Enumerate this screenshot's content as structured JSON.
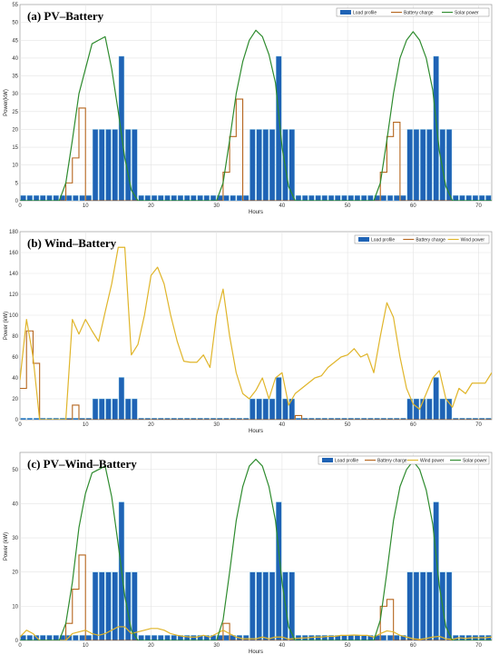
{
  "chart_data": [
    {
      "type": "bar",
      "title": "(a) PV–Battery",
      "xlabel": "Hours",
      "ylabel": "Power(kW)",
      "xlim": [
        0,
        72
      ],
      "ylim": [
        0,
        55
      ],
      "xticks": [
        0,
        10,
        20,
        30,
        40,
        50,
        60,
        70
      ],
      "yticks": [
        0,
        5,
        10,
        15,
        20,
        25,
        30,
        35,
        40,
        45,
        50,
        55
      ],
      "grid": true,
      "legend_position": "top-right",
      "colors": {
        "load": "#1f63b5",
        "battery": "#b5651d",
        "solar": "#2e8b2e"
      },
      "series": [
        {
          "name": "Load profile",
          "kind": "bar",
          "values": [
            1.5,
            1.5,
            1.5,
            1.5,
            1.5,
            1.5,
            1.5,
            1.5,
            1.5,
            1.5,
            1.5,
            20,
            20,
            20,
            20,
            40.5,
            20,
            20,
            1.5,
            1.5,
            1.5,
            1.5,
            1.5,
            1.5,
            1.5,
            1.5,
            1.5,
            1.5,
            1.5,
            1.5,
            1.5,
            1.5,
            1.5,
            1.5,
            1.5,
            20,
            20,
            20,
            20,
            40.5,
            20,
            20,
            1.5,
            1.5,
            1.5,
            1.5,
            1.5,
            1.5,
            1.5,
            1.5,
            1.5,
            1.5,
            1.5,
            1.5,
            1.5,
            1.5,
            1.5,
            1.5,
            1.5,
            20,
            20,
            20,
            20,
            40.5,
            20,
            20,
            1.5,
            1.5,
            1.5,
            1.5,
            1.5,
            1.5
          ]
        },
        {
          "name": "Battery charge",
          "kind": "step",
          "values": [
            0,
            0,
            0,
            0,
            0,
            0,
            0,
            5,
            12,
            26,
            0,
            0,
            0,
            0,
            0,
            0,
            0,
            0,
            0,
            0,
            0,
            0,
            0,
            0,
            0,
            0,
            0,
            0,
            0,
            0,
            0,
            8,
            18,
            28.5,
            0,
            0,
            0,
            0,
            0,
            0,
            0,
            0,
            0,
            0,
            0,
            0,
            0,
            0,
            0,
            0,
            0,
            0,
            0,
            0,
            0,
            8,
            18,
            22,
            0,
            0,
            0,
            0,
            0,
            0,
            0,
            0,
            0,
            0,
            0,
            0,
            0,
            0
          ]
        },
        {
          "name": "Solar power",
          "kind": "line",
          "x": [
            0,
            6,
            7,
            8,
            9,
            10,
            11,
            12,
            13,
            14,
            15,
            16,
            17,
            18,
            30,
            31,
            32,
            33,
            34,
            35,
            36,
            37,
            38,
            39,
            40,
            41,
            42,
            54,
            55,
            56,
            57,
            58,
            59,
            60,
            61,
            62,
            63,
            64,
            65,
            66,
            72
          ],
          "values": [
            0,
            0,
            5,
            17,
            30,
            37,
            44,
            45,
            46,
            37,
            25,
            12,
            3,
            0,
            0,
            5,
            17,
            30,
            39,
            45,
            47.8,
            46,
            41,
            33,
            15,
            4,
            0,
            0,
            5,
            17,
            30,
            40,
            45,
            47.4,
            45,
            40,
            31,
            14,
            4,
            0,
            0
          ]
        }
      ]
    },
    {
      "type": "bar",
      "title": "(b) Wind–Battery",
      "xlabel": "Hours",
      "ylabel": "Power (kW)",
      "xlim": [
        0,
        72
      ],
      "ylim": [
        0,
        180
      ],
      "xticks": [
        0,
        10,
        20,
        30,
        40,
        50,
        60,
        70
      ],
      "yticks": [
        0,
        20,
        40,
        60,
        80,
        100,
        120,
        140,
        160,
        180
      ],
      "grid": true,
      "legend_position": "top-right",
      "colors": {
        "load": "#1f63b5",
        "battery": "#b5651d",
        "wind": "#e0b52a"
      },
      "series": [
        {
          "name": "Load profile",
          "kind": "bar",
          "values": [
            1.5,
            1.5,
            1.5,
            1.5,
            1.5,
            1.5,
            1.5,
            1.5,
            1.5,
            1.5,
            1.5,
            20,
            20,
            20,
            20,
            40.5,
            20,
            20,
            1.5,
            1.5,
            1.5,
            1.5,
            1.5,
            1.5,
            1.5,
            1.5,
            1.5,
            1.5,
            1.5,
            1.5,
            1.5,
            1.5,
            1.5,
            1.5,
            1.5,
            20,
            20,
            20,
            20,
            40.5,
            20,
            20,
            1.5,
            1.5,
            1.5,
            1.5,
            1.5,
            1.5,
            1.5,
            1.5,
            1.5,
            1.5,
            1.5,
            1.5,
            1.5,
            1.5,
            1.5,
            1.5,
            1.5,
            20,
            20,
            20,
            20,
            40.5,
            20,
            20,
            1.5,
            1.5,
            1.5,
            1.5,
            1.5,
            1.5
          ]
        },
        {
          "name": "Battery charge",
          "kind": "step",
          "values": [
            30,
            85,
            54,
            0,
            0,
            0,
            0,
            0,
            14,
            0,
            0,
            0,
            0,
            0,
            0,
            0,
            0,
            0,
            0,
            0,
            0,
            0,
            0,
            0,
            0,
            0,
            0,
            0,
            0,
            0,
            0,
            0,
            0,
            0,
            0,
            0,
            0,
            0,
            0,
            0,
            0,
            0,
            4,
            0,
            0,
            0,
            0,
            0,
            0,
            0,
            0,
            0,
            0,
            0,
            0,
            0,
            0,
            0,
            0,
            0,
            0,
            0,
            0,
            0,
            0,
            0,
            0,
            0,
            0,
            0,
            0,
            0
          ]
        },
        {
          "name": "Wind power",
          "kind": "line",
          "x": [
            0,
            1,
            2,
            3,
            4,
            5,
            6,
            7,
            8,
            9,
            10,
            11,
            12,
            13,
            14,
            15,
            16,
            17,
            18,
            19,
            20,
            21,
            22,
            23,
            24,
            25,
            26,
            27,
            28,
            29,
            30,
            31,
            32,
            33,
            34,
            35,
            36,
            37,
            38,
            39,
            40,
            41,
            42,
            43,
            44,
            45,
            46,
            47,
            48,
            49,
            50,
            51,
            52,
            53,
            54,
            55,
            56,
            57,
            58,
            59,
            60,
            61,
            62,
            63,
            64,
            65,
            66,
            67,
            68,
            69,
            70,
            71,
            72
          ],
          "values": [
            38,
            96,
            60,
            0,
            0,
            0,
            0,
            0,
            96,
            82,
            96,
            85,
            75,
            103,
            130,
            165,
            165,
            62,
            72,
            100,
            138,
            146,
            130,
            100,
            75,
            56,
            55,
            55,
            62,
            50,
            100,
            125,
            80,
            45,
            25,
            20,
            28,
            40,
            20,
            40,
            45,
            14,
            25,
            30,
            35,
            40,
            42,
            50,
            55,
            60,
            62,
            68,
            60,
            63,
            45,
            80,
            112,
            98,
            60,
            30,
            15,
            10,
            25,
            40,
            47,
            20,
            12,
            30,
            25,
            35,
            35,
            35,
            45
          ]
        }
      ]
    },
    {
      "type": "bar",
      "title": "(c) PV–Wind–Battery",
      "xlabel": "Hours",
      "ylabel": "Power (kW)",
      "xlim": [
        0,
        72
      ],
      "ylim": [
        0,
        55
      ],
      "xticks": [
        0,
        10,
        20,
        30,
        40,
        50,
        60,
        70
      ],
      "yticks": [
        0,
        10,
        20,
        30,
        40,
        50
      ],
      "grid": true,
      "legend_position": "top-right",
      "colors": {
        "load": "#1f63b5",
        "battery": "#b5651d",
        "wind": "#e0b52a",
        "solar": "#2e8b2e"
      },
      "series": [
        {
          "name": "Load profile",
          "kind": "bar",
          "values": [
            1.5,
            1.5,
            1.5,
            1.5,
            1.5,
            1.5,
            1.5,
            1.5,
            1.5,
            1.5,
            1.5,
            20,
            20,
            20,
            20,
            40.5,
            20,
            20,
            1.5,
            1.5,
            1.5,
            1.5,
            1.5,
            1.5,
            1.5,
            1.5,
            1.5,
            1.5,
            1.5,
            1.5,
            1.5,
            1.5,
            1.5,
            1.5,
            1.5,
            20,
            20,
            20,
            20,
            40.5,
            20,
            20,
            1.5,
            1.5,
            1.5,
            1.5,
            1.5,
            1.5,
            1.5,
            1.5,
            1.5,
            1.5,
            1.5,
            1.5,
            1.5,
            1.5,
            1.5,
            1.5,
            1.5,
            20,
            20,
            20,
            20,
            40.5,
            20,
            20,
            1.5,
            1.5,
            1.5,
            1.5,
            1.5,
            1.5
          ]
        },
        {
          "name": "Battery charge",
          "kind": "step",
          "values": [
            0,
            0,
            0,
            0,
            0,
            0,
            0,
            5,
            15,
            25,
            0,
            0,
            0,
            0,
            0,
            0,
            0,
            0,
            0,
            0,
            0,
            0,
            0,
            0,
            0,
            0,
            0,
            0,
            0,
            0,
            0,
            5,
            0,
            0,
            0,
            0,
            0,
            0,
            0,
            0,
            0,
            0,
            0,
            0,
            0,
            0,
            0,
            0,
            0,
            0,
            0,
            0,
            0,
            0,
            0,
            10,
            12,
            0,
            0,
            0,
            0,
            0,
            0,
            0,
            0,
            0,
            0,
            0,
            0,
            0,
            0,
            0
          ]
        },
        {
          "name": "Wind power",
          "kind": "line",
          "x": [
            0,
            1,
            2,
            3,
            4,
            5,
            6,
            7,
            8,
            9,
            10,
            11,
            12,
            13,
            14,
            15,
            16,
            17,
            18,
            19,
            20,
            21,
            22,
            23,
            24,
            25,
            26,
            27,
            28,
            29,
            30,
            31,
            32,
            33,
            34,
            35,
            36,
            37,
            38,
            39,
            40,
            41,
            42,
            43,
            44,
            45,
            46,
            47,
            48,
            49,
            50,
            51,
            52,
            53,
            54,
            55,
            56,
            57,
            58,
            59,
            60,
            61,
            62,
            63,
            64,
            65,
            66,
            67,
            68,
            69,
            70,
            71,
            72
          ],
          "values": [
            1,
            3,
            2,
            0,
            0,
            0,
            0,
            0,
            2,
            2.5,
            3,
            2,
            1.5,
            2,
            3,
            4,
            4,
            2,
            2.5,
            3,
            3.5,
            3.5,
            3,
            2,
            1.5,
            1.2,
            1,
            1,
            1.5,
            1,
            2,
            3,
            2,
            1,
            0.5,
            0.5,
            0.5,
            1,
            0.5,
            1,
            1,
            0.4,
            0.6,
            0.7,
            0.8,
            1,
            1,
            1.2,
            1.2,
            1.5,
            1.5,
            1.6,
            1.5,
            1.5,
            1,
            2,
            2.8,
            2.5,
            1.5,
            1,
            0.5,
            0.3,
            0.6,
            1,
            1.2,
            0.5,
            0.3,
            0.8,
            0.6,
            0.8,
            0.8,
            0.8,
            1
          ]
        },
        {
          "name": "Solar power",
          "kind": "line",
          "x": [
            0,
            6,
            7,
            8,
            9,
            10,
            11,
            12,
            13,
            14,
            15,
            16,
            17,
            18,
            30,
            31,
            32,
            33,
            34,
            35,
            36,
            37,
            38,
            39,
            40,
            41,
            42,
            54,
            55,
            56,
            57,
            58,
            59,
            60,
            61,
            62,
            63,
            64,
            65,
            66,
            72
          ],
          "values": [
            0,
            0,
            5,
            17,
            33,
            43,
            49,
            50,
            51,
            42,
            28,
            13,
            3,
            0,
            0,
            6,
            20,
            35,
            45,
            51,
            53,
            51,
            45,
            35,
            17,
            4,
            0,
            0,
            6,
            20,
            35,
            45,
            50,
            52.5,
            50,
            44,
            34,
            16,
            4,
            0,
            0
          ]
        }
      ]
    }
  ]
}
